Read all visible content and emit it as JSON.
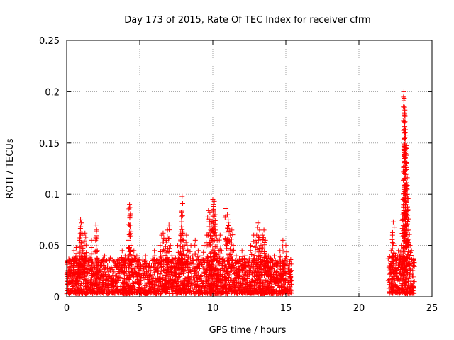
{
  "chart_data": {
    "type": "scatter",
    "title": "Day 173 of 2015, Rate Of TEC Index for receiver cfrm",
    "xlabel": "GPS time / hours",
    "ylabel": "ROTI / TECUs",
    "xlim": [
      0,
      25
    ],
    "ylim": [
      0,
      0.25
    ],
    "xticks": [
      0,
      5,
      10,
      15,
      20,
      25
    ],
    "xtick_labels": [
      "0",
      "5",
      "10",
      "15",
      "20",
      "25"
    ],
    "yticks": [
      0,
      0.05,
      0.1,
      0.15,
      0.2,
      0.25
    ],
    "ytick_labels": [
      "0",
      "0.05",
      "0.1",
      "0.15",
      "0.2",
      "0.25"
    ],
    "grid": true,
    "marker": "+",
    "color": "#ff0000",
    "series": [
      {
        "name": "ROTI",
        "points": [
          [
            0.1,
            0.012
          ],
          [
            0.15,
            0.025
          ],
          [
            0.2,
            0.018
          ],
          [
            0.25,
            0.03
          ],
          [
            0.3,
            0.022
          ],
          [
            0.35,
            0.035
          ],
          [
            0.4,
            0.015
          ],
          [
            0.45,
            0.028
          ],
          [
            0.5,
            0.045
          ],
          [
            0.55,
            0.02
          ],
          [
            0.6,
            0.038
          ],
          [
            0.65,
            0.048
          ],
          [
            0.7,
            0.025
          ],
          [
            0.75,
            0.018
          ],
          [
            0.8,
            0.03
          ],
          [
            0.85,
            0.042
          ],
          [
            0.9,
            0.055
          ],
          [
            0.95,
            0.075
          ],
          [
            1.0,
            0.072
          ],
          [
            1.05,
            0.06
          ],
          [
            1.1,
            0.045
          ],
          [
            1.15,
            0.035
          ],
          [
            1.2,
            0.05
          ],
          [
            1.25,
            0.062
          ],
          [
            1.3,
            0.058
          ],
          [
            1.35,
            0.04
          ],
          [
            1.4,
            0.03
          ],
          [
            1.5,
            0.025
          ],
          [
            1.6,
            0.038
          ],
          [
            1.7,
            0.055
          ],
          [
            1.8,
            0.03
          ],
          [
            1.9,
            0.02
          ],
          [
            2.0,
            0.07
          ],
          [
            2.05,
            0.065
          ],
          [
            2.1,
            0.045
          ],
          [
            2.2,
            0.025
          ],
          [
            2.3,
            0.018
          ],
          [
            2.4,
            0.03
          ],
          [
            2.5,
            0.02
          ],
          [
            2.6,
            0.04
          ],
          [
            2.7,
            0.035
          ],
          [
            2.8,
            0.03
          ],
          [
            2.9,
            0.02
          ],
          [
            3.0,
            0.018
          ],
          [
            3.1,
            0.012
          ],
          [
            3.2,
            0.01
          ],
          [
            3.3,
            0.015
          ],
          [
            3.4,
            0.02
          ],
          [
            3.5,
            0.018
          ],
          [
            3.6,
            0.03
          ],
          [
            3.7,
            0.025
          ],
          [
            3.8,
            0.045
          ],
          [
            3.9,
            0.035
          ],
          [
            4.0,
            0.04
          ],
          [
            4.1,
            0.028
          ],
          [
            4.2,
            0.055
          ],
          [
            4.3,
            0.09
          ],
          [
            4.32,
            0.087
          ],
          [
            4.35,
            0.068
          ],
          [
            4.4,
            0.05
          ],
          [
            4.5,
            0.035
          ],
          [
            4.6,
            0.045
          ],
          [
            4.7,
            0.03
          ],
          [
            4.8,
            0.04
          ],
          [
            4.9,
            0.025
          ],
          [
            5.0,
            0.035
          ],
          [
            5.2,
            0.03
          ],
          [
            5.4,
            0.04
          ],
          [
            5.6,
            0.025
          ],
          [
            5.8,
            0.03
          ],
          [
            6.0,
            0.045
          ],
          [
            6.2,
            0.035
          ],
          [
            6.4,
            0.05
          ],
          [
            6.5,
            0.06
          ],
          [
            6.6,
            0.062
          ],
          [
            6.7,
            0.045
          ],
          [
            6.8,
            0.055
          ],
          [
            6.9,
            0.065
          ],
          [
            7.0,
            0.07
          ],
          [
            7.1,
            0.05
          ],
          [
            7.2,
            0.04
          ],
          [
            7.4,
            0.035
          ],
          [
            7.5,
            0.03
          ],
          [
            7.6,
            0.05
          ],
          [
            7.7,
            0.04
          ],
          [
            7.8,
            0.06
          ],
          [
            7.85,
            0.078
          ],
          [
            7.9,
            0.098
          ],
          [
            7.95,
            0.062
          ],
          [
            8.0,
            0.055
          ],
          [
            8.1,
            0.04
          ],
          [
            8.2,
            0.06
          ],
          [
            8.3,
            0.045
          ],
          [
            8.4,
            0.03
          ],
          [
            8.5,
            0.05
          ],
          [
            8.6,
            0.04
          ],
          [
            8.8,
            0.055
          ],
          [
            9.0,
            0.045
          ],
          [
            9.2,
            0.04
          ],
          [
            9.4,
            0.05
          ],
          [
            9.6,
            0.06
          ],
          [
            9.7,
            0.084
          ],
          [
            9.8,
            0.082
          ],
          [
            9.85,
            0.065
          ],
          [
            9.9,
            0.07
          ],
          [
            10.0,
            0.095
          ],
          [
            10.05,
            0.09
          ],
          [
            10.1,
            0.093
          ],
          [
            10.15,
            0.08
          ],
          [
            10.2,
            0.065
          ],
          [
            10.3,
            0.055
          ],
          [
            10.4,
            0.045
          ],
          [
            10.5,
            0.06
          ],
          [
            10.6,
            0.045
          ],
          [
            10.8,
            0.035
          ],
          [
            10.9,
            0.086
          ],
          [
            11.0,
            0.08
          ],
          [
            11.05,
            0.075
          ],
          [
            11.1,
            0.07
          ],
          [
            11.2,
            0.06
          ],
          [
            11.3,
            0.065
          ],
          [
            11.4,
            0.05
          ],
          [
            11.6,
            0.04
          ],
          [
            11.8,
            0.035
          ],
          [
            12.0,
            0.045
          ],
          [
            12.2,
            0.04
          ],
          [
            12.4,
            0.035
          ],
          [
            12.6,
            0.05
          ],
          [
            12.8,
            0.06
          ],
          [
            12.9,
            0.055
          ],
          [
            13.0,
            0.06
          ],
          [
            13.1,
            0.072
          ],
          [
            13.2,
            0.065
          ],
          [
            13.3,
            0.05
          ],
          [
            13.4,
            0.06
          ],
          [
            13.5,
            0.065
          ],
          [
            13.6,
            0.055
          ],
          [
            13.8,
            0.04
          ],
          [
            14.0,
            0.035
          ],
          [
            14.2,
            0.04
          ],
          [
            14.4,
            0.03
          ],
          [
            14.6,
            0.045
          ],
          [
            14.8,
            0.055
          ],
          [
            15.0,
            0.05
          ],
          [
            15.1,
            0.035
          ],
          [
            15.2,
            0.025
          ],
          [
            15.3,
            0.018
          ],
          [
            22.1,
            0.03
          ],
          [
            22.2,
            0.045
          ],
          [
            22.3,
            0.06
          ],
          [
            22.35,
            0.073
          ],
          [
            22.4,
            0.05
          ],
          [
            22.5,
            0.04
          ],
          [
            22.6,
            0.03
          ],
          [
            22.7,
            0.045
          ],
          [
            22.8,
            0.04
          ],
          [
            22.9,
            0.05
          ],
          [
            23.0,
            0.08
          ],
          [
            23.02,
            0.095
          ],
          [
            23.05,
            0.09
          ],
          [
            23.08,
            0.2
          ],
          [
            23.1,
            0.193
          ],
          [
            23.12,
            0.185
          ],
          [
            23.15,
            0.177
          ],
          [
            23.18,
            0.163
          ],
          [
            23.2,
            0.153
          ],
          [
            23.22,
            0.145
          ],
          [
            23.25,
            0.138
          ],
          [
            23.28,
            0.105
          ],
          [
            23.3,
            0.1
          ],
          [
            23.35,
            0.085
          ],
          [
            23.4,
            0.065
          ],
          [
            23.5,
            0.05
          ],
          [
            23.6,
            0.045
          ],
          [
            23.7,
            0.03
          ],
          [
            23.75,
            0.02
          ]
        ]
      }
    ],
    "dense_band": [
      {
        "x_start": 0.0,
        "x_end": 15.4,
        "y_min": 0.003,
        "y_max": 0.038
      },
      {
        "x_start": 22.0,
        "x_end": 23.8,
        "y_min": 0.003,
        "y_max": 0.04
      }
    ]
  }
}
